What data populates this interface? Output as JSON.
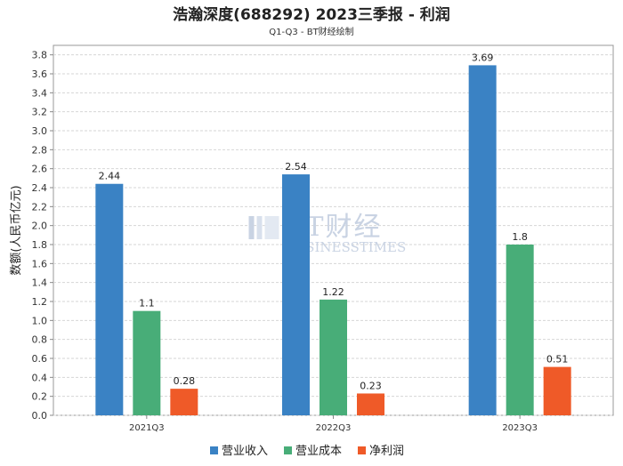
{
  "chart_data": {
    "type": "bar",
    "title": "浩瀚深度(688292) 2023三季报 - 利润",
    "subtitle": "Q1-Q3 - BT财经绘制",
    "ylabel": "数额(人民币亿元)",
    "xlabel": "",
    "categories": [
      "2021Q3",
      "2022Q3",
      "2023Q3"
    ],
    "ylim": [
      0,
      3.9
    ],
    "yticks": [
      "0.0",
      "0.2",
      "0.4",
      "0.6",
      "0.8",
      "1.0",
      "1.2",
      "1.4",
      "1.6",
      "1.8",
      "2.0",
      "2.2",
      "2.4",
      "2.6",
      "2.8",
      "3.0",
      "3.2",
      "3.4",
      "3.6",
      "3.8"
    ],
    "series": [
      {
        "name": "营业收入",
        "color": "#3a82c4",
        "values": [
          2.44,
          2.54,
          3.69
        ],
        "labels": [
          "2.44",
          "2.54",
          "3.69"
        ]
      },
      {
        "name": "营业成本",
        "color": "#48ad78",
        "values": [
          1.1,
          1.22,
          1.8
        ],
        "labels": [
          "1.1",
          "1.22",
          "1.8"
        ]
      },
      {
        "name": "净利润",
        "color": "#ef5a28",
        "values": [
          0.28,
          0.23,
          0.51
        ],
        "labels": [
          "0.28",
          "0.23",
          "0.51"
        ]
      }
    ],
    "grid": true,
    "legend_position": "bottom",
    "watermark": {
      "line1": "BT财经",
      "line2": "BUSINESSTIMES"
    }
  }
}
